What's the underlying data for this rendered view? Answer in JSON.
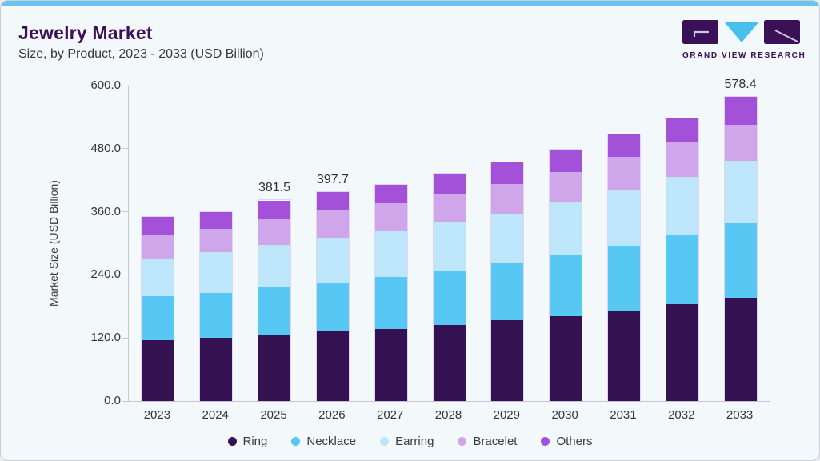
{
  "header": {
    "title": "Jewelry Market",
    "subtitle": "Size, by Product, 2023 - 2033 (USD Billion)",
    "logo_text": "GRAND VIEW RESEARCH"
  },
  "colors": {
    "top_strip": "#69C3F0",
    "title": "#3D1056",
    "axis_line": "#C3C8D0",
    "tick_text": "#34343E",
    "logo_purple": "#3A1056",
    "logo_blue": "#47BFEC"
  },
  "chart_data": {
    "type": "bar",
    "stacked": true,
    "title": "Jewelry Market",
    "subtitle": "Size, by Product, 2023 - 2033 (USD Billion)",
    "xlabel": "",
    "ylabel": "Market Size (USD Billion)",
    "ylim": [
      0,
      600
    ],
    "yticks": [
      0,
      120,
      240,
      360,
      480,
      600
    ],
    "ytick_labels": [
      "0.0",
      "120.0",
      "240.0",
      "360.0",
      "480.0",
      "600.0"
    ],
    "grid": false,
    "legend_position": "bottom",
    "categories": [
      "2023",
      "2024",
      "2025",
      "2026",
      "2027",
      "2028",
      "2029",
      "2030",
      "2031",
      "2032",
      "2033"
    ],
    "series": [
      {
        "name": "Ring",
        "color": "#341150",
        "values": [
          116,
          120,
          126,
          132,
          137,
          145,
          154,
          162,
          172,
          184,
          197
        ]
      },
      {
        "name": "Necklace",
        "color": "#57C7F3",
        "values": [
          83,
          85,
          90,
          94,
          99,
          104,
          109,
          116,
          124,
          131,
          141
        ]
      },
      {
        "name": "Earring",
        "color": "#BEE6FA",
        "values": [
          72,
          78,
          81,
          85,
          87,
          90,
          94,
          101,
          106,
          111,
          119
        ]
      },
      {
        "name": "Bracelet",
        "color": "#CFA6E9",
        "values": [
          44,
          44,
          49,
          51,
          53,
          55,
          56,
          56,
          62,
          67,
          68.4
        ]
      },
      {
        "name": "Others",
        "color": "#A351D8",
        "values": [
          36,
          33,
          35.5,
          35.7,
          35,
          38,
          41,
          43,
          43,
          45,
          53
        ]
      }
    ],
    "totals": [
      351,
      360,
      381.5,
      397.7,
      411,
      432,
      454,
      478,
      507,
      538,
      578.4
    ],
    "data_labels": {
      "2025": "381.5",
      "2026": "397.7",
      "2033": "578.4"
    }
  }
}
